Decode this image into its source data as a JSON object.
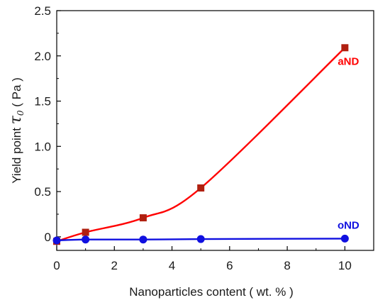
{
  "chart_data": {
    "type": "line",
    "xlabel": "Nanoparticles content (  wt. % )",
    "ylabel_prefix": "Yield point ",
    "ylabel_symbol": "τ",
    "ylabel_subscript": "0",
    "ylabel_suffix": " (   Pa )",
    "xlim": [
      0,
      11
    ],
    "ylim": [
      -0.15,
      2.5
    ],
    "x_ticks": [
      0,
      2,
      4,
      6,
      8,
      10
    ],
    "x_tick_labels": [
      "0",
      "2",
      "4",
      "6",
      "8",
      "10"
    ],
    "y_ticks": [
      0,
      0.5,
      1.0,
      1.5,
      2.0,
      2.5
    ],
    "y_tick_labels": [
      "0",
      "0.5",
      "1.0",
      "1.5",
      "2.0",
      "2.5"
    ],
    "grid": false,
    "series": [
      {
        "name": "aND",
        "color": "#ff0000",
        "marker_color": "#b02010",
        "marker": "square",
        "x": [
          0,
          1,
          3,
          5,
          10
        ],
        "y": [
          -0.05,
          0.05,
          0.21,
          0.54,
          2.09
        ]
      },
      {
        "name": "oND",
        "color": "#1010e0",
        "marker_color": "#1010e0",
        "marker": "circle",
        "x": [
          0,
          1,
          3,
          5,
          10
        ],
        "y": [
          -0.04,
          -0.03,
          -0.03,
          -0.025,
          -0.02
        ]
      }
    ]
  }
}
